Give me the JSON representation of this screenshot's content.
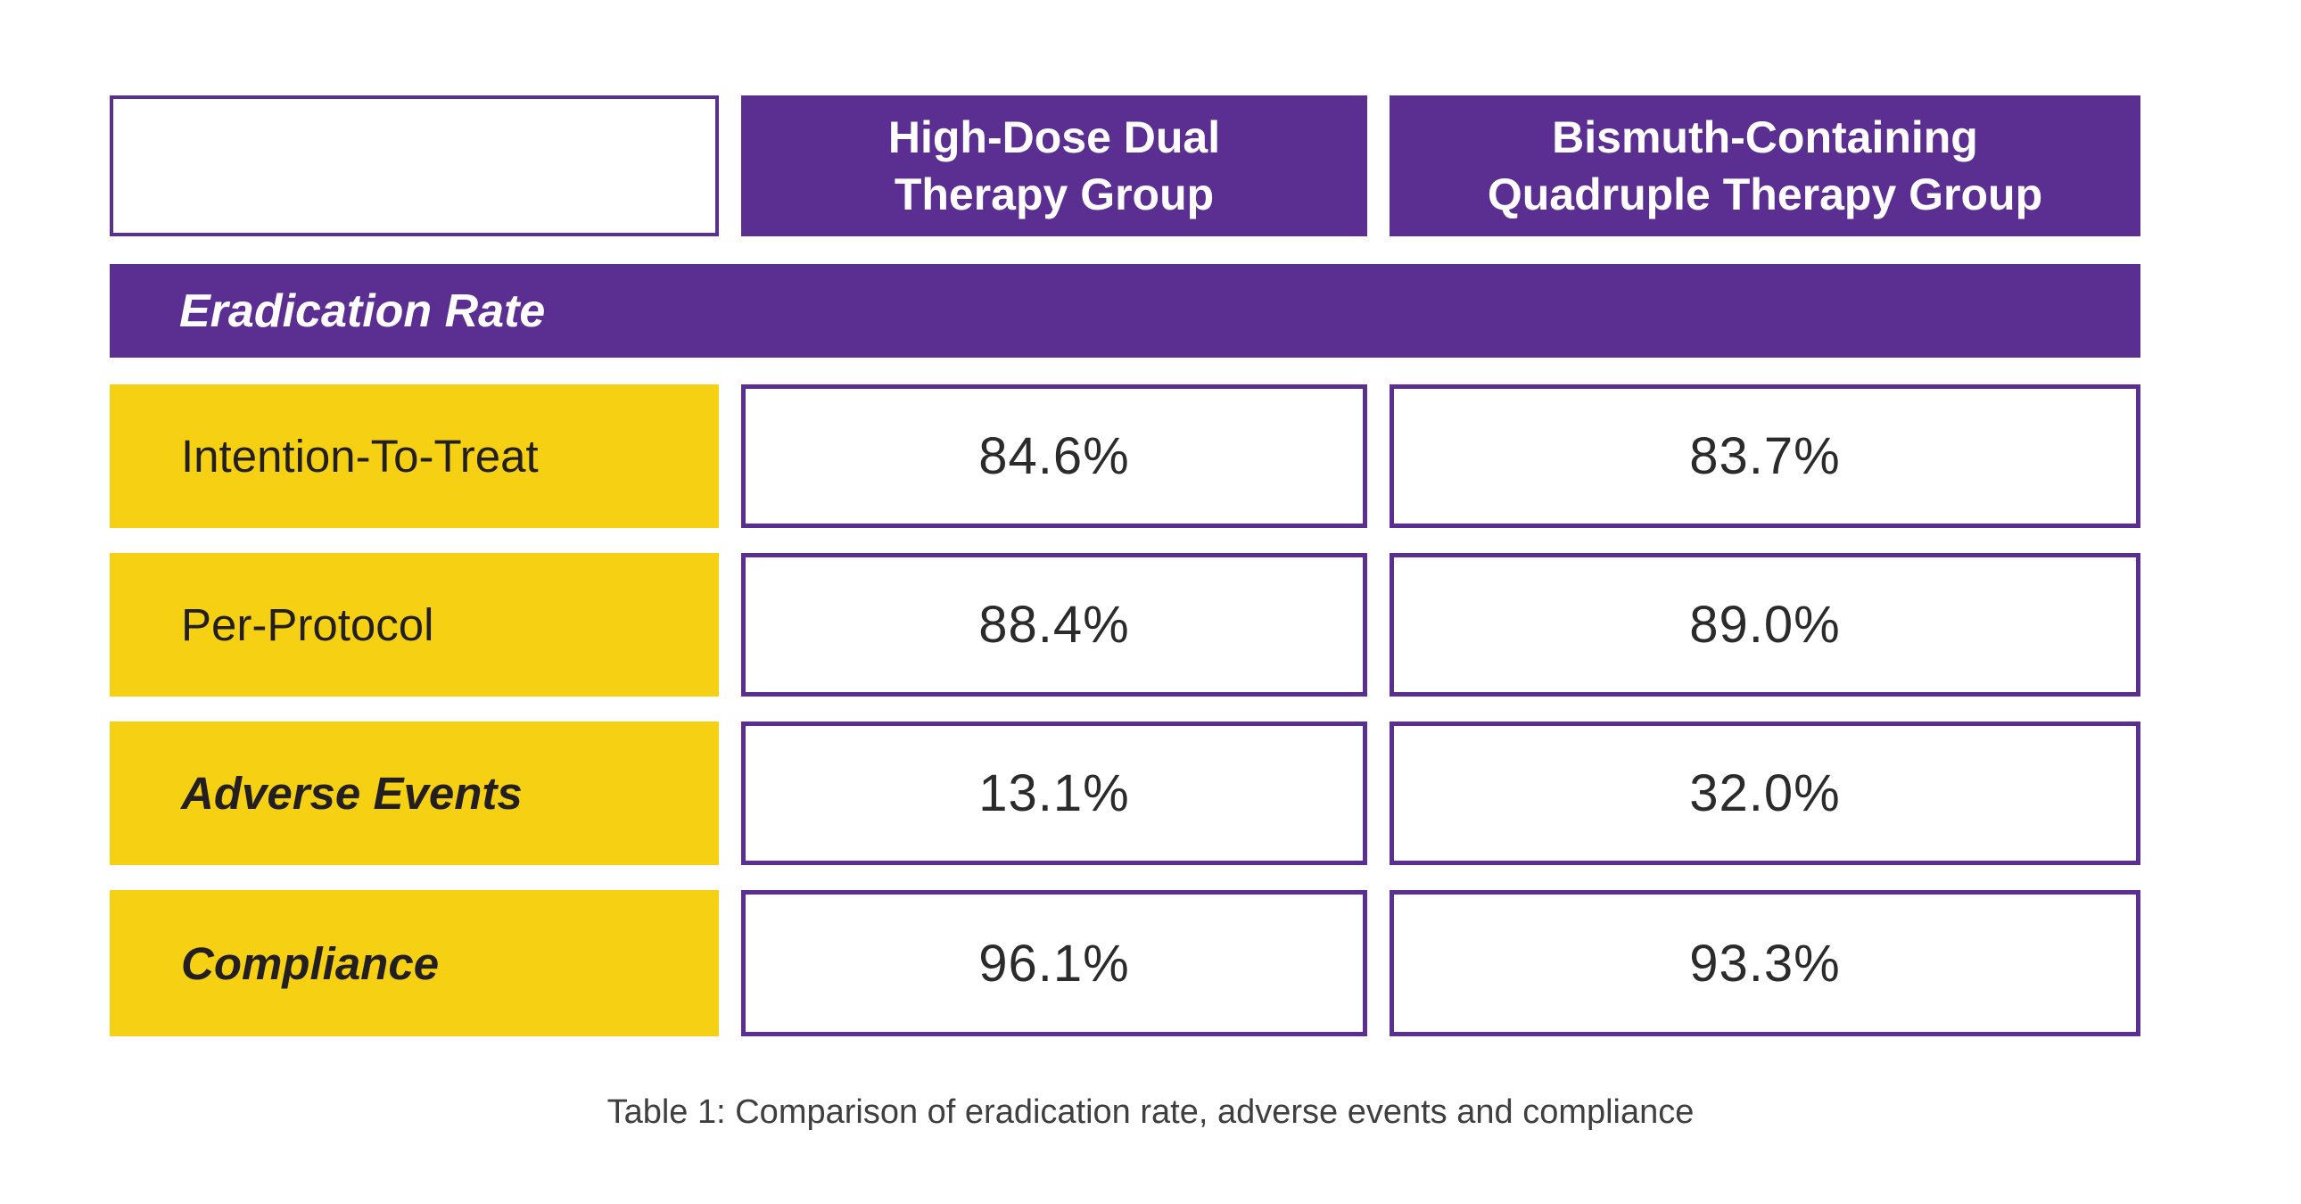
{
  "colors": {
    "purple": "#5b2e91",
    "yellow": "#f6d013",
    "cell_border": "#5b2e91",
    "header_text": "#ffffff",
    "body_text": "#231f20",
    "value_text": "#2b2b2b",
    "caption_text": "#3f3f3f",
    "background": "#ffffff"
  },
  "table": {
    "columns": [
      {
        "header_line1": "",
        "header_line2": ""
      },
      {
        "header_line1": "High-Dose Dual",
        "header_line2": "Therapy Group"
      },
      {
        "header_line1": "Bismuth-Containing",
        "header_line2": "Quadruple Therapy Group"
      }
    ],
    "section_header": "Eradication Rate",
    "rows": [
      {
        "label": "Intention-To-Treat",
        "style": "regular",
        "values": [
          "84.6%",
          "83.7%"
        ]
      },
      {
        "label": "Per-Protocol",
        "style": "regular",
        "values": [
          "88.4%",
          "89.0%"
        ]
      },
      {
        "label": "Adverse Events",
        "style": "bold-italic",
        "values": [
          "13.1%",
          "32.0%"
        ]
      },
      {
        "label": "Compliance",
        "style": "bold-italic",
        "values": [
          "96.1%",
          "93.3%"
        ]
      }
    ]
  },
  "caption": "Table 1: Comparison of eradication rate, adverse events and compliance",
  "chart_data": {
    "type": "table",
    "title": "Table 1: Comparison of eradication rate, adverse events and compliance",
    "section": "Eradication Rate",
    "categories": [
      "Intention-To-Treat",
      "Per-Protocol",
      "Adverse Events",
      "Compliance"
    ],
    "series": [
      {
        "name": "High-Dose Dual Therapy Group",
        "values": [
          84.6,
          88.4,
          13.1,
          96.1
        ]
      },
      {
        "name": "Bismuth-Containing Quadruple Therapy Group",
        "values": [
          83.7,
          89.0,
          32.0,
          93.3
        ]
      }
    ],
    "units": "%"
  }
}
